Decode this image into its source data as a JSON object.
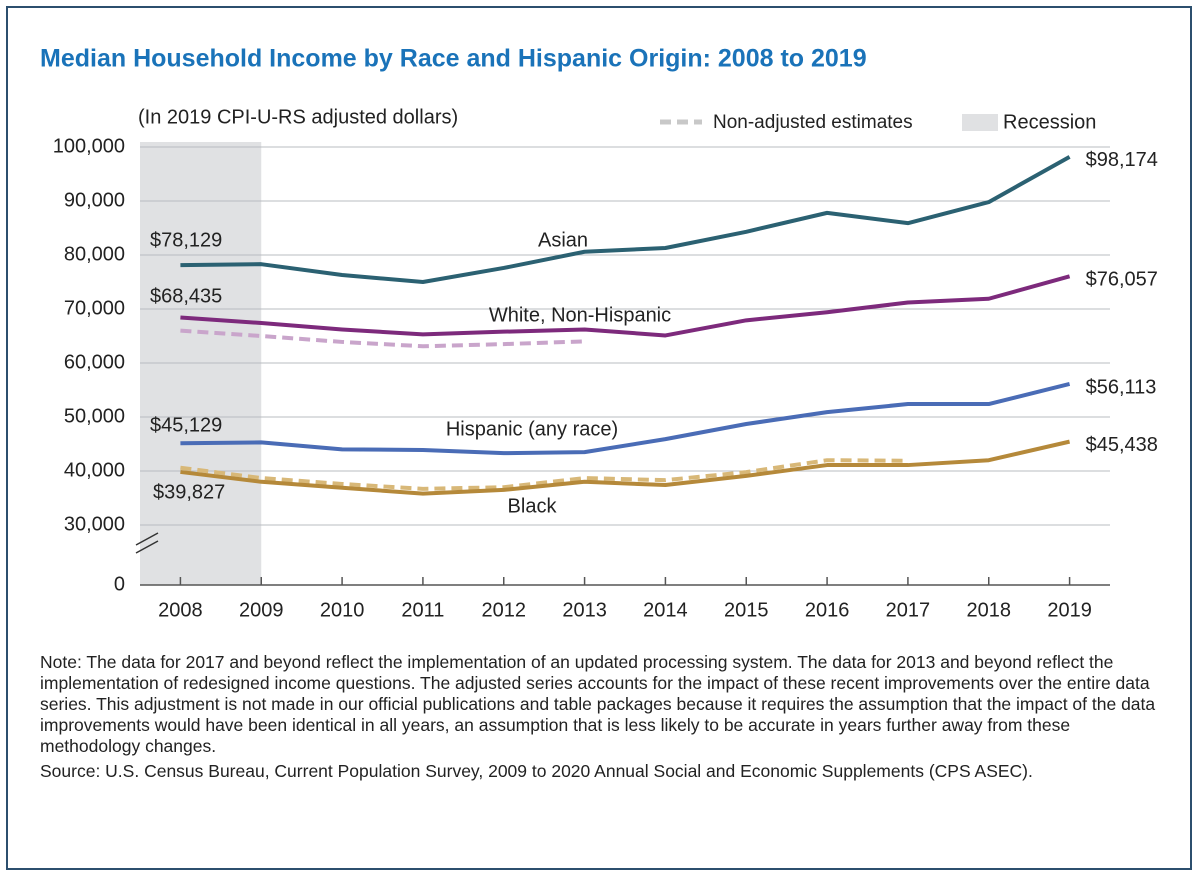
{
  "chart_data": {
    "type": "line",
    "title": "Median Household Income by Race and Hispanic Origin: 2008 to 2019",
    "subtitle": "(In 2019 CPI-U-RS adjusted dollars)",
    "x": [
      2008,
      2009,
      2010,
      2011,
      2012,
      2013,
      2014,
      2015,
      2016,
      2017,
      2018,
      2019
    ],
    "xlim": [
      2007.5,
      2019.5
    ],
    "xticks": [
      2008,
      2009,
      2010,
      2011,
      2012,
      2013,
      2014,
      2015,
      2016,
      2017,
      2018,
      2019
    ],
    "ylim": [
      0,
      100000
    ],
    "axis_break": [
      0,
      30000
    ],
    "yticks": [
      0,
      {
        "value": 30000,
        "label": "30,000"
      },
      {
        "value": 40000,
        "label": "40,000"
      },
      {
        "value": 50000,
        "label": "50,000"
      },
      {
        "value": 60000,
        "label": "60,000"
      },
      {
        "value": 70000,
        "label": "70,000"
      },
      {
        "value": 80000,
        "label": "80,000"
      },
      {
        "value": 90000,
        "label": "90,000"
      },
      {
        "value": 100000,
        "label": "100,000"
      }
    ],
    "grid": true,
    "series": [
      {
        "name": "Asian",
        "color": "#2b6172",
        "values": [
          78129,
          78300,
          76300,
          75000,
          77600,
          80600,
          81300,
          84300,
          87800,
          85900,
          89800,
          98174
        ],
        "value_labels": [
          "$78,129",
          null,
          null,
          null,
          null,
          null,
          null,
          null,
          null,
          null,
          null,
          "$98,174"
        ]
      },
      {
        "name": "White, Non-Hispanic",
        "color": "#7d2a7c",
        "values": [
          68435,
          67400,
          66200,
          65300,
          65800,
          66200,
          65100,
          67900,
          69400,
          71200,
          71900,
          76057
        ],
        "value_labels": [
          "$68,435",
          null,
          null,
          null,
          null,
          null,
          null,
          null,
          null,
          null,
          null,
          "$76,057"
        ]
      },
      {
        "name": "Hispanic (any race)",
        "color": "#4a6cb6",
        "values": [
          45129,
          45300,
          44000,
          43900,
          43300,
          43500,
          45900,
          48700,
          50900,
          52400,
          52400,
          56113
        ],
        "value_labels": [
          "$45,129",
          null,
          null,
          null,
          null,
          null,
          null,
          null,
          null,
          null,
          null,
          "$56,113"
        ]
      },
      {
        "name": "Black",
        "color": "#b5893a",
        "values": [
          39827,
          38000,
          36900,
          35800,
          36500,
          38000,
          37400,
          39100,
          41100,
          41100,
          42000,
          45438
        ],
        "value_labels": [
          "$39,827",
          null,
          null,
          null,
          null,
          null,
          null,
          null,
          null,
          null,
          null,
          "$45,438"
        ]
      }
    ],
    "non_adjusted": {
      "label": "Non-adjusted estimates",
      "legend_color": "#c8c8c8",
      "series": [
        {
          "color": "#c9a5cb",
          "values": [
            66000,
            65000,
            63900,
            63100,
            63500,
            64000,
            null,
            null,
            null,
            null,
            null,
            null
          ]
        },
        {
          "color": "#d8b878",
          "values": [
            40600,
            38700,
            37600,
            36700,
            37000,
            38700,
            38300,
            39800,
            42000,
            41900,
            null,
            null
          ]
        }
      ]
    },
    "recession": {
      "label": "Recession",
      "color": "#e0e1e3",
      "xrange": [
        2007.5,
        2009
      ]
    }
  },
  "notes": {
    "note": "Note: The data for 2017 and beyond reflect the implementation of an updated processing system. The data for 2013 and beyond reflect the implementation of redesigned income questions. The adjusted series accounts for the impact of these recent improvements over the entire data series. This adjustment is not made in our official publications and table packages because it requires the assumption that the impact of the data improvements would have been identical in all years, an assumption that is less likely to be accurate in years further away from these methodology changes.",
    "source": "Source: U.S. Census Bureau, Current Population Survey, 2009 to 2020 Annual Social and Economic Supplements (CPS ASEC)."
  }
}
